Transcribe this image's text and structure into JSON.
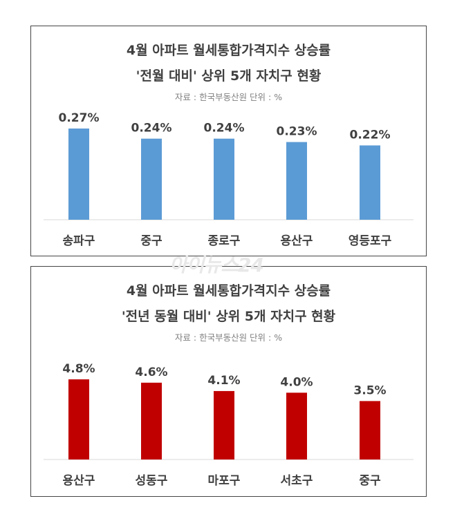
{
  "watermark": "아이뉴스24",
  "chart_data": [
    {
      "type": "bar",
      "title": "4월 아파트 월세통합가격지수 상승률",
      "subtitle": "'전월 대비' 상위 5개 자치구 현황",
      "source": "자료 : 한국부동산원  단위 : %",
      "categories": [
        "송파구",
        "중구",
        "종로구",
        "용산구",
        "영등포구"
      ],
      "values": [
        0.27,
        0.24,
        0.24,
        0.23,
        0.22
      ],
      "labels": [
        "0.27%",
        "0.24%",
        "0.24%",
        "0.23%",
        "0.22%"
      ],
      "color": "#5b9bd5",
      "ylim": [
        0,
        0.27
      ],
      "grid": false
    },
    {
      "type": "bar",
      "title": "4월 아파트 월세통합가격지수 상승률",
      "subtitle": "'전년 동월 대비' 상위 5개 자치구 현황",
      "source": "자료 : 한국부동산원  단위 : %",
      "categories": [
        "용산구",
        "성동구",
        "마포구",
        "서초구",
        "중구"
      ],
      "values": [
        4.8,
        4.6,
        4.1,
        4.0,
        3.5
      ],
      "labels": [
        "4.8%",
        "4.6%",
        "4.1%",
        "4.0%",
        "3.5%"
      ],
      "color": "#c00000",
      "ylim": [
        0,
        4.8
      ],
      "grid": false
    }
  ]
}
